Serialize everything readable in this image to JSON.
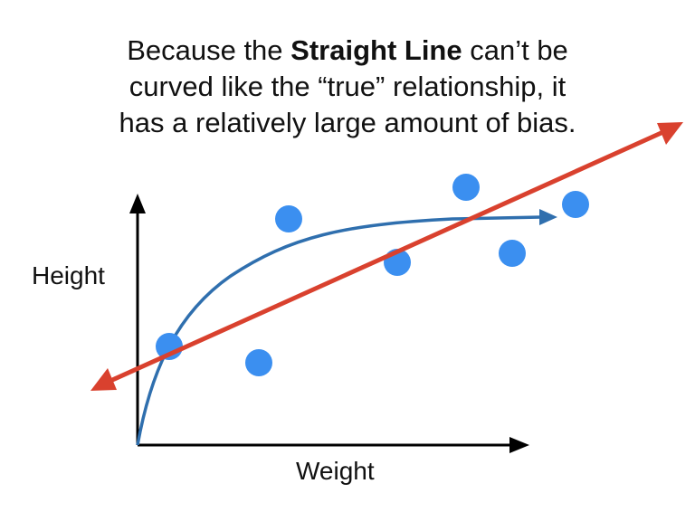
{
  "caption": {
    "line1_before": "Because the ",
    "line1_bold": "Straight Line",
    "line1_after": " can’t be",
    "line2": "curved like the “true” relationship, it",
    "line3": "has a relatively large amount of bias."
  },
  "axes": {
    "ylabel": "Height",
    "xlabel": "Weight"
  },
  "colors": {
    "points": "#3b8ff0",
    "true_curve": "#2f6fae",
    "straight_line": "#d9412e",
    "axes": "#000000"
  }
}
